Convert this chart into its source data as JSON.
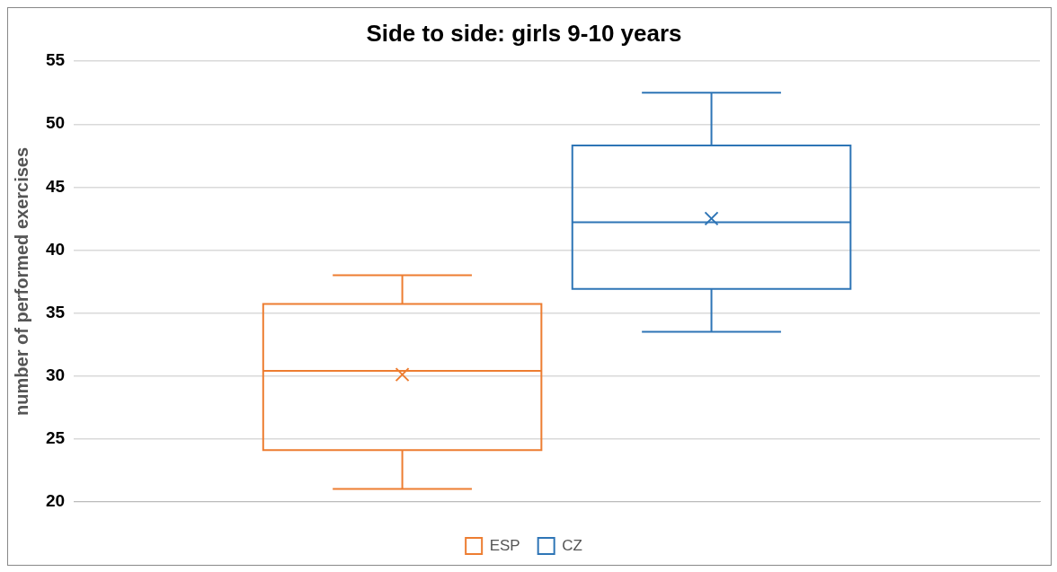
{
  "chart_data": {
    "type": "box",
    "title": "Side to side: girls 9-10 years",
    "ylabel": "number of performed exercises",
    "categories": [
      null
    ],
    "series": [
      {
        "name": "ESP",
        "color": "#ed7d31",
        "boxes": [
          {
            "low": 21.0,
            "q1": 24.1,
            "median": 30.4,
            "q3": 35.7,
            "high": 38.0,
            "mean": 30.1
          }
        ]
      },
      {
        "name": "CZ",
        "color": "#2e75b6",
        "boxes": [
          {
            "low": 33.5,
            "q1": 36.9,
            "median": 42.2,
            "q3": 48.3,
            "high": 52.5,
            "mean": 42.5
          }
        ]
      }
    ],
    "ylim": [
      20,
      55
    ],
    "yticks": [
      20,
      25,
      30,
      35,
      40,
      45,
      50,
      55
    ],
    "grid": "y",
    "legend": "bottom",
    "marker": "cross"
  }
}
